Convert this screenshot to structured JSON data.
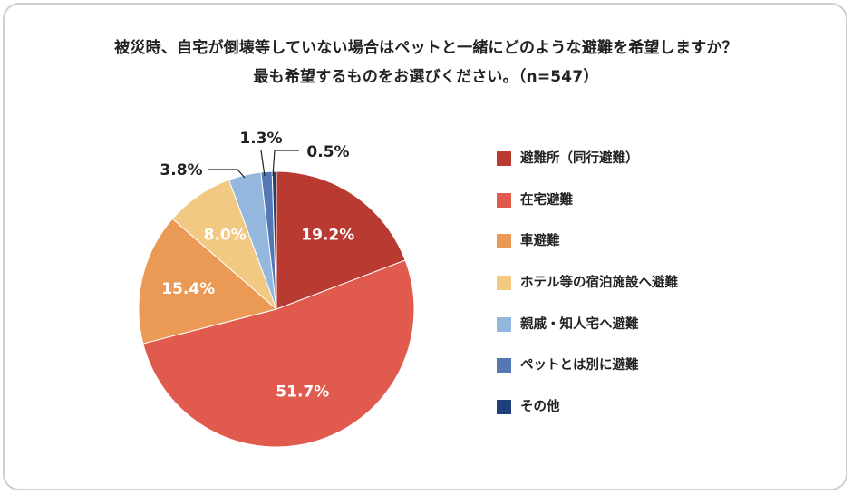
{
  "title_line1": "被災時、自宅が倒壊等していない場合はペットと一緒にどのような避難を希望しますか？",
  "title_line2": "最も希望するものをお選びください。（n=547）",
  "chart_data": {
    "type": "pie",
    "start_angle_deg": 0,
    "direction": "clockwise",
    "slices": [
      {
        "label": "避難所（同行避難）",
        "value": 19.2,
        "display": "19.2%",
        "color": "#b83a31"
      },
      {
        "label": "在宅避難",
        "value": 51.7,
        "display": "51.7%",
        "color": "#e05a4e"
      },
      {
        "label": "車避難",
        "value": 15.4,
        "display": "15.4%",
        "color": "#ea9a55"
      },
      {
        "label": "ホテル等の宿泊施設へ避難",
        "value": 8.0,
        "display": "8.0%",
        "color": "#f1c983"
      },
      {
        "label": "親戚・知人宅へ避難",
        "value": 3.8,
        "display": "3.8%",
        "color": "#93b7dd"
      },
      {
        "label": "ペットとは別に避難",
        "value": 1.3,
        "display": "1.3%",
        "color": "#5378b4"
      },
      {
        "label": "その他",
        "value": 0.5,
        "display": "0.5%",
        "color": "#1d3f7a"
      }
    ],
    "legend_position": "right"
  }
}
